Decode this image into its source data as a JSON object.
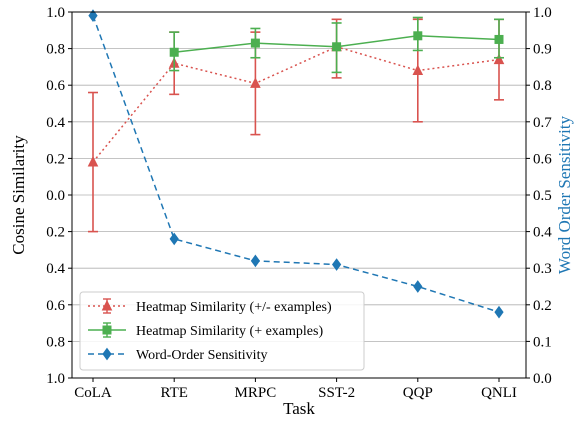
{
  "chart_data": {
    "type": "line",
    "xlabel": "Task",
    "ylabel_left": "Cosine Similarity",
    "ylabel_right": "Word Order Sensitivity",
    "categories": [
      "CoLA",
      "RTE",
      "MRPC",
      "SST-2",
      "QQP",
      "QNLI"
    ],
    "left_axis": {
      "ylim": [
        -1.0,
        1.0
      ],
      "ticks": [
        1.0,
        0.8,
        0.6,
        0.4,
        0.2,
        0.0,
        -0.2,
        -0.4,
        -0.6,
        -0.8,
        -1.0
      ],
      "tick_labels": [
        "1.0",
        "0.8",
        "0.6",
        "0.4",
        "0.2",
        "0.0",
        "0.2",
        "0.4",
        "0.6",
        "0.8",
        "1.0"
      ]
    },
    "right_axis": {
      "ylim": [
        0.0,
        1.0
      ],
      "ticks": [
        1.0,
        0.9,
        0.8,
        0.7,
        0.6,
        0.5,
        0.4,
        0.3,
        0.2,
        0.1,
        0.0
      ],
      "tick_labels": [
        "1.0",
        "0.9",
        "0.8",
        "0.7",
        "0.6",
        "0.5",
        "0.4",
        "0.3",
        "0.2",
        "0.1",
        "0.0"
      ]
    },
    "grid": "horizontal",
    "legend_position": "lower-left",
    "series": [
      {
        "name": "Heatmap Similarity (+/- examples)",
        "axis": "left",
        "color": "#d9534f",
        "style": "dotted",
        "marker": "triangle",
        "values": [
          0.18,
          0.72,
          0.61,
          0.81,
          0.68,
          0.74
        ],
        "error_low": [
          -0.2,
          0.55,
          0.33,
          0.64,
          0.4,
          0.52
        ],
        "error_high": [
          0.56,
          0.89,
          0.89,
          0.96,
          0.96,
          0.96
        ]
      },
      {
        "name": "Heatmap Similarity (+ examples)",
        "axis": "left",
        "color": "#4caf50",
        "style": "solid",
        "marker": "square",
        "values": [
          null,
          0.78,
          0.83,
          0.81,
          0.87,
          0.85
        ],
        "error_low": [
          null,
          0.68,
          0.75,
          0.67,
          0.79,
          0.75
        ],
        "error_high": [
          null,
          0.89,
          0.91,
          0.94,
          0.97,
          0.96
        ]
      },
      {
        "name": "Word-Order Sensitivity",
        "axis": "right",
        "color": "#1f77b4",
        "style": "dashed",
        "marker": "diamond",
        "values": [
          0.99,
          0.38,
          0.32,
          0.31,
          0.25,
          0.18
        ]
      }
    ]
  }
}
